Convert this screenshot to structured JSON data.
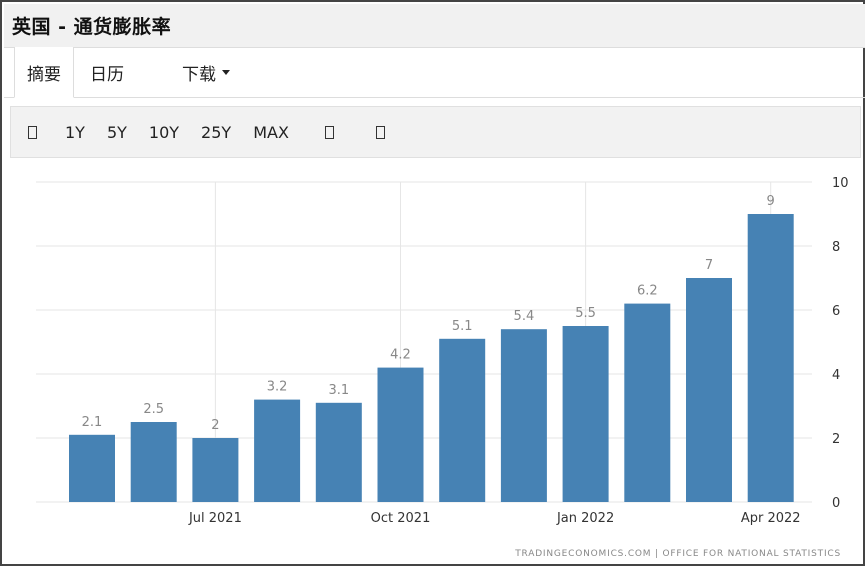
{
  "title": "英国 - 通货膨胀率",
  "tabs": [
    {
      "label": "摘要"
    },
    {
      "label": "日历"
    },
    {
      "label": "下载"
    }
  ],
  "toolbar": {
    "first_icon": "calendar-icon",
    "ranges": [
      "1Y",
      "5Y",
      "10Y",
      "25Y",
      "MAX"
    ],
    "trailing_icons": [
      "chart-type-icon",
      "settings-icon"
    ]
  },
  "source": "TRADINGECONOMICS.COM  |  OFFICE FOR NATIONAL STATISTICS",
  "colors": {
    "bar": "#4682b4",
    "grid": "#e6e6e6",
    "label": "#888888"
  },
  "chart_data": {
    "type": "bar",
    "categories": [
      "2021-05",
      "2021-06",
      "2021-07",
      "2021-08",
      "2021-09",
      "2021-10",
      "2021-11",
      "2021-12",
      "2022-01",
      "2022-02",
      "2022-03",
      "2022-04"
    ],
    "values": [
      2.1,
      2.5,
      2,
      3.2,
      3.1,
      4.2,
      5.1,
      5.4,
      5.5,
      6.2,
      7,
      9
    ],
    "data_labels": [
      "2.1",
      "2.5",
      "2",
      "3.2",
      "3.1",
      "4.2",
      "5.1",
      "5.4",
      "5.5",
      "6.2",
      "7",
      "9"
    ],
    "x_tick_labels": [
      {
        "label": "Jul 2021",
        "at": "2021-07"
      },
      {
        "label": "Oct 2021",
        "at": "2021-10"
      },
      {
        "label": "Jan 2022",
        "at": "2022-01"
      },
      {
        "label": "Apr 2022",
        "at": "2022-04"
      }
    ],
    "y_ticks": [
      0,
      2,
      4,
      6,
      8,
      10
    ],
    "ylim": [
      0,
      10
    ],
    "y_axis_side": "right",
    "grid": true,
    "title": "",
    "xlabel": "",
    "ylabel": ""
  }
}
